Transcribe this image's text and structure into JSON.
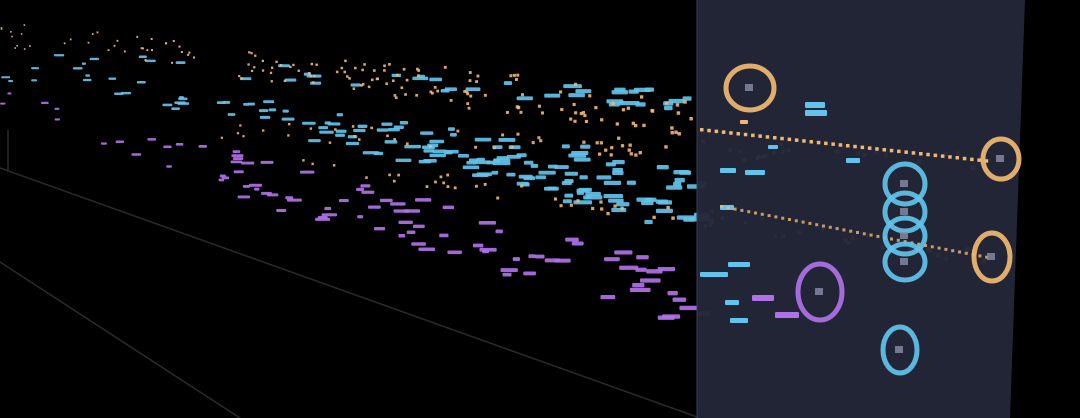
{
  "scene": {
    "title": "",
    "colors": {
      "background": "#000000",
      "playhead_plane": "#232638",
      "plane_edge": "#3a3f58",
      "orange_voice": "#f2b872",
      "blue_voice": "#62c3ec",
      "purple_voice": "#b071e8",
      "grid_lines": "#2a2a2a"
    },
    "voices": [
      {
        "id": "orange",
        "color_key": "orange_voice",
        "note_style": "dots"
      },
      {
        "id": "blue",
        "color_key": "blue_voice",
        "note_style": "dashes"
      },
      {
        "id": "purple",
        "color_key": "purple_voice",
        "note_style": "dashes"
      }
    ],
    "active_note_rings": [
      {
        "voice": "orange",
        "label": ""
      },
      {
        "voice": "orange",
        "label": ""
      },
      {
        "voice": "orange",
        "label": ""
      },
      {
        "voice": "blue",
        "label": ""
      },
      {
        "voice": "blue",
        "label": ""
      },
      {
        "voice": "blue",
        "label": ""
      },
      {
        "voice": "blue",
        "label": ""
      },
      {
        "voice": "blue",
        "label": ""
      },
      {
        "voice": "purple",
        "label": ""
      }
    ]
  }
}
